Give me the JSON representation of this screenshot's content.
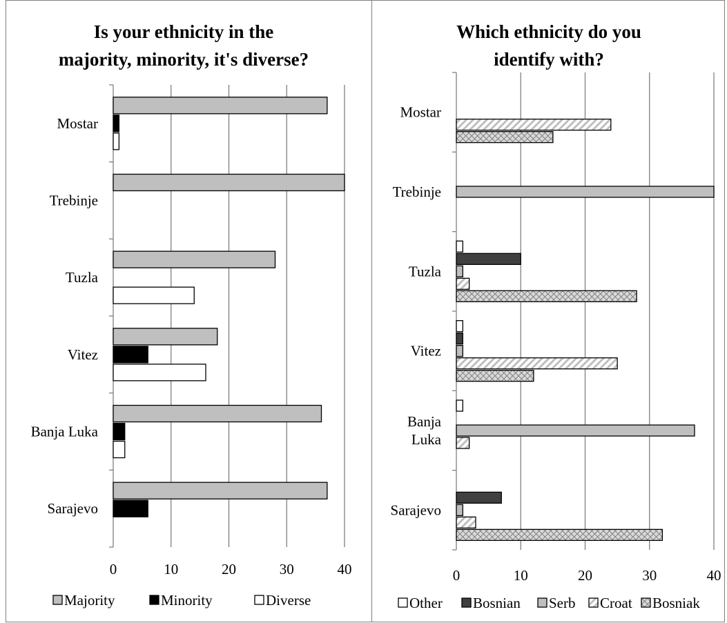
{
  "chart_data": [
    {
      "type": "bar",
      "orientation": "horizontal",
      "title_lines": [
        "Is your ethnicity in the",
        "majority, minority, it's diverse?"
      ],
      "categories": [
        "Mostar",
        "Trebinje",
        "Tuzla",
        "Vitez",
        "Banja Luka",
        "Sarajevo"
      ],
      "category_lines": [
        [
          "Mostar"
        ],
        [
          "Trebinje"
        ],
        [
          "Tuzla"
        ],
        [
          "Vitez"
        ],
        [
          "Banja Luka"
        ],
        [
          "Sarajevo"
        ]
      ],
      "series": [
        {
          "name": "Majority",
          "values": [
            37,
            40,
            28,
            18,
            36,
            37
          ],
          "fill": "#bfbfbf",
          "pattern": "solid"
        },
        {
          "name": "Minority",
          "values": [
            1,
            0,
            0,
            6,
            2,
            6
          ],
          "fill": "#000000",
          "pattern": "solid"
        },
        {
          "name": "Diverse",
          "values": [
            1,
            0,
            14,
            16,
            2,
            0
          ],
          "fill": "#ffffff",
          "pattern": "solid"
        }
      ],
      "xlim": [
        0,
        40
      ],
      "xticks": [
        "0",
        "10",
        "20",
        "30",
        "40"
      ],
      "grid": "vertical",
      "legend": "bottom"
    },
    {
      "type": "bar",
      "orientation": "horizontal",
      "title_lines": [
        "Which ethnicity do you",
        "identify with?"
      ],
      "categories": [
        "Mostar",
        "Trebinje",
        "Tuzla",
        "Vitez",
        "Banja Luka",
        "Sarajevo"
      ],
      "category_lines": [
        [
          "Mostar"
        ],
        [
          "Trebinje"
        ],
        [
          "Tuzla"
        ],
        [
          "Vitez"
        ],
        [
          "Banja",
          "Luka"
        ],
        [
          "Sarajevo"
        ]
      ],
      "series": [
        {
          "name": "Other",
          "values": [
            0,
            0,
            1,
            1,
            1,
            0
          ],
          "fill": "#ffffff",
          "pattern": "solid"
        },
        {
          "name": "Bosnian",
          "values": [
            0,
            0,
            10,
            1,
            0,
            7
          ],
          "fill": "#404040",
          "pattern": "solid"
        },
        {
          "name": "Serb",
          "values": [
            0,
            40,
            1,
            1,
            37,
            1
          ],
          "fill": "#bfbfbf",
          "pattern": "solid"
        },
        {
          "name": "Croat",
          "values": [
            24,
            0,
            2,
            25,
            2,
            3
          ],
          "fill": "#d9d9d9",
          "pattern": "diagonal"
        },
        {
          "name": "Bosniak",
          "values": [
            15,
            0,
            28,
            12,
            0,
            32
          ],
          "fill": "#bfbfbf",
          "pattern": "cross"
        }
      ],
      "xlim": [
        0,
        40
      ],
      "xticks": [
        "0",
        "10",
        "20",
        "30",
        "40"
      ],
      "grid": "vertical",
      "legend": "bottom"
    }
  ]
}
